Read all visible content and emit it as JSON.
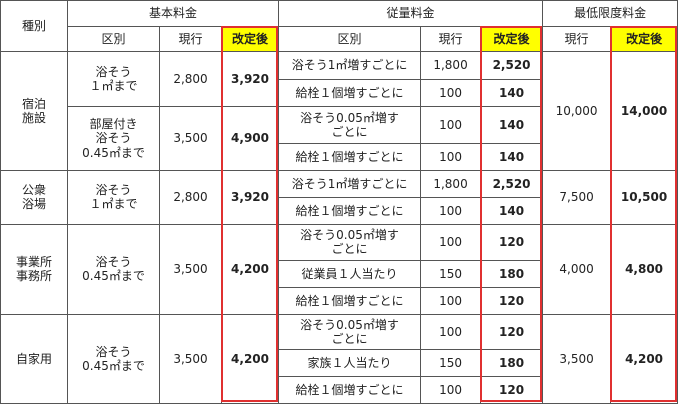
{
  "header": {
    "category": "種別",
    "basic_fee": "基本料金",
    "metered_fee": "従量料金",
    "minimum_fee": "最低限度料金",
    "division": "区別",
    "current": "現行",
    "revised": "改定後"
  },
  "accent": {
    "highlight": "#ffff00",
    "border": "#e03030"
  },
  "groups": [
    {
      "category": [
        "宿泊",
        "施設"
      ],
      "min_current": "10,000",
      "min_revised": "14,000",
      "basics": [
        {
          "division": [
            "浴そう",
            "１㎡まで"
          ],
          "current": "2,800",
          "revised": "3,920",
          "metered": [
            {
              "division": [
                "浴そう1㎡増すごとに"
              ],
              "current": "1,800",
              "revised": "2,520"
            },
            {
              "division": [
                "給栓１個増すごとに"
              ],
              "current": "100",
              "revised": "140"
            }
          ]
        },
        {
          "division": [
            "部屋付き",
            "浴そう",
            "0.45㎡まで"
          ],
          "current": "3,500",
          "revised": "4,900",
          "metered": [
            {
              "division": [
                "浴そう0.05㎡増す",
                "ごとに"
              ],
              "current": "100",
              "revised": "140"
            },
            {
              "division": [
                "給栓１個増すごとに"
              ],
              "current": "100",
              "revised": "140"
            }
          ]
        }
      ]
    },
    {
      "category": [
        "公衆",
        "浴場"
      ],
      "min_current": "7,500",
      "min_revised": "10,500",
      "basics": [
        {
          "division": [
            "浴そう",
            "１㎡まで"
          ],
          "current": "2,800",
          "revised": "3,920",
          "metered": [
            {
              "division": [
                "浴そう1㎡増すごとに"
              ],
              "current": "1,800",
              "revised": "2,520"
            },
            {
              "division": [
                "給栓１個増すごとに"
              ],
              "current": "100",
              "revised": "140"
            }
          ]
        }
      ]
    },
    {
      "category": [
        "事業所",
        "事務所"
      ],
      "min_current": "4,000",
      "min_revised": "4,800",
      "basics": [
        {
          "division": [
            "浴そう",
            "0.45㎡まで"
          ],
          "current": "3,500",
          "revised": "4,200",
          "metered": [
            {
              "division": [
                "浴そう0.05㎡増す",
                "ごとに"
              ],
              "current": "100",
              "revised": "120"
            },
            {
              "division": [
                "従業員１人当たり"
              ],
              "current": "150",
              "revised": "180"
            },
            {
              "division": [
                "給栓１個増すごとに"
              ],
              "current": "100",
              "revised": "120"
            }
          ]
        }
      ]
    },
    {
      "category": [
        "自家用"
      ],
      "min_current": "3,500",
      "min_revised": "4,200",
      "basics": [
        {
          "division": [
            "浴そう",
            "0.45㎡まで"
          ],
          "current": "3,500",
          "revised": "4,200",
          "metered": [
            {
              "division": [
                "浴そう0.05㎡増す",
                "ごとに"
              ],
              "current": "100",
              "revised": "120"
            },
            {
              "division": [
                "家族１人当たり"
              ],
              "current": "150",
              "revised": "180"
            },
            {
              "division": [
                "給栓１個増すごとに"
              ],
              "current": "100",
              "revised": "120"
            }
          ]
        }
      ]
    }
  ]
}
